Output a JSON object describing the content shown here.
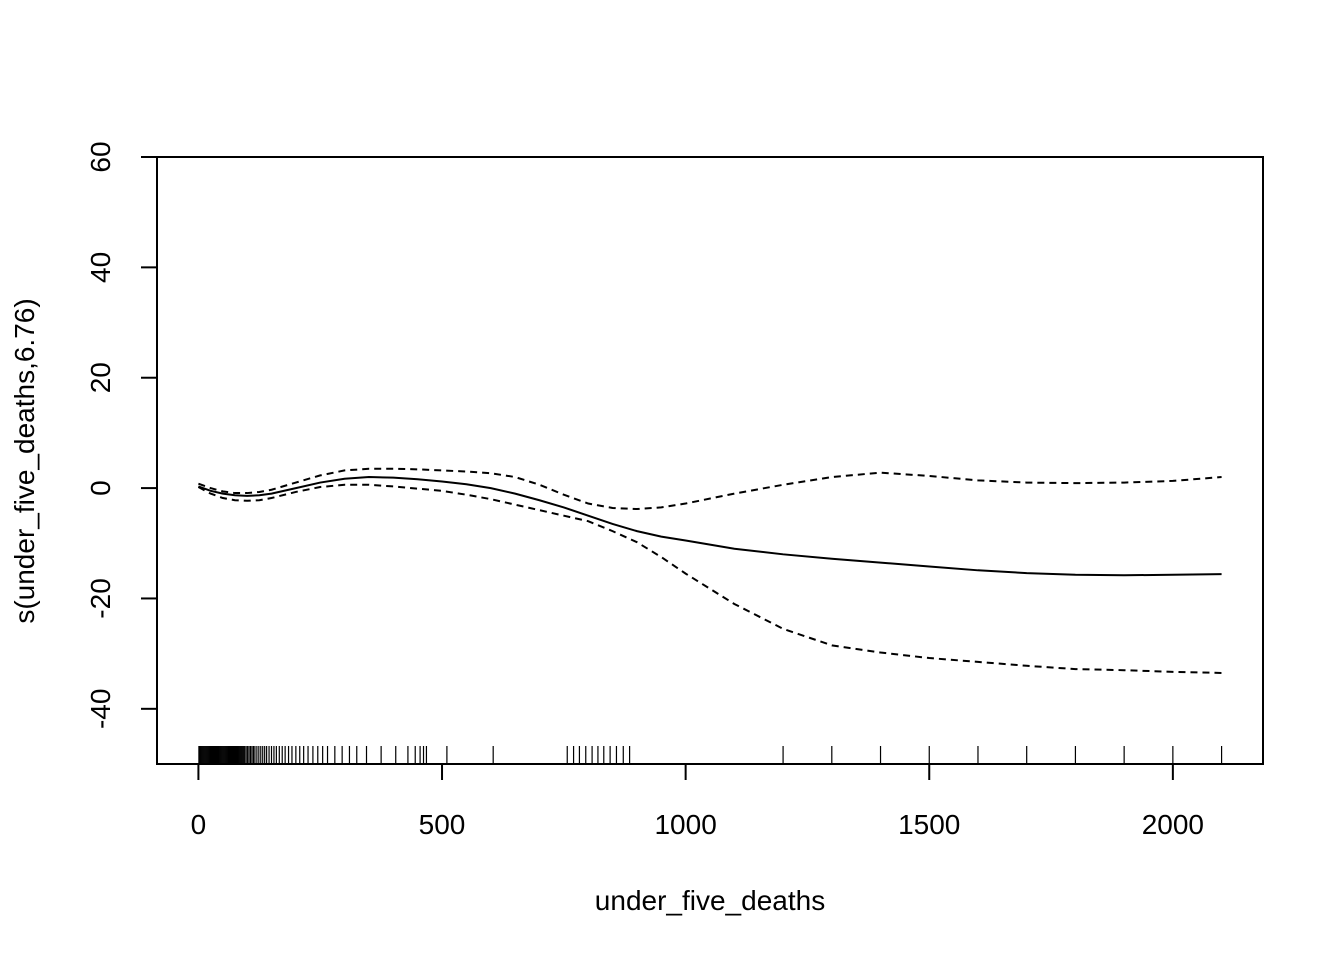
{
  "chart_data": {
    "type": "line",
    "title": "",
    "xlabel": "under_five_deaths",
    "ylabel": "s(under_five_deaths,6.76)",
    "xlim": [
      -85,
      2185
    ],
    "ylim": [
      -50,
      60
    ],
    "xticks": [
      0,
      500,
      1000,
      1500,
      2000
    ],
    "yticks": [
      -40,
      -20,
      0,
      20,
      40,
      60
    ],
    "grid": false,
    "series": [
      {
        "role": "estimate",
        "style": "solid",
        "x": [
          0,
          25,
          50,
          75,
          100,
          125,
          150,
          200,
          250,
          300,
          350,
          400,
          450,
          500,
          550,
          600,
          650,
          700,
          750,
          800,
          850,
          900,
          950,
          1000,
          1100,
          1200,
          1300,
          1400,
          1500,
          1600,
          1700,
          1800,
          1900,
          2000,
          2100
        ],
        "y": [
          0.3,
          -0.5,
          -1.0,
          -1.3,
          -1.4,
          -1.3,
          -1.0,
          0.0,
          1.0,
          1.7,
          2.0,
          1.9,
          1.6,
          1.2,
          0.7,
          0.0,
          -1.0,
          -2.2,
          -3.5,
          -5.0,
          -6.5,
          -7.8,
          -8.8,
          -9.5,
          -11.0,
          -12.0,
          -12.8,
          -13.5,
          -14.2,
          -14.9,
          -15.4,
          -15.7,
          -15.8,
          -15.7,
          -15.6
        ]
      },
      {
        "role": "upper-bound",
        "style": "dashed",
        "x": [
          0,
          25,
          50,
          75,
          100,
          125,
          150,
          200,
          250,
          300,
          350,
          400,
          450,
          500,
          550,
          600,
          650,
          700,
          750,
          800,
          850,
          900,
          950,
          1000,
          1100,
          1200,
          1300,
          1400,
          1500,
          1600,
          1700,
          1800,
          1900,
          2000,
          2100
        ],
        "y": [
          0.8,
          0.0,
          -0.6,
          -0.9,
          -0.9,
          -0.7,
          -0.3,
          1.0,
          2.3,
          3.2,
          3.5,
          3.5,
          3.4,
          3.2,
          3.0,
          2.7,
          2.0,
          0.6,
          -1.2,
          -2.8,
          -3.6,
          -3.8,
          -3.5,
          -2.8,
          -1.0,
          0.6,
          2.0,
          2.8,
          2.2,
          1.4,
          1.0,
          0.9,
          1.0,
          1.3,
          2.0
        ]
      },
      {
        "role": "lower-bound",
        "style": "dashed",
        "x": [
          0,
          25,
          50,
          75,
          100,
          125,
          150,
          200,
          250,
          300,
          350,
          400,
          450,
          500,
          550,
          600,
          650,
          700,
          750,
          800,
          850,
          900,
          950,
          1000,
          1100,
          1200,
          1300,
          1400,
          1500,
          1600,
          1700,
          1800,
          1900,
          2000,
          2100
        ],
        "y": [
          0.2,
          -1.0,
          -1.8,
          -2.2,
          -2.3,
          -2.2,
          -1.8,
          -0.7,
          0.2,
          0.6,
          0.6,
          0.3,
          -0.1,
          -0.5,
          -1.2,
          -2.0,
          -3.0,
          -4.0,
          -5.0,
          -6.0,
          -7.8,
          -9.8,
          -12.5,
          -15.5,
          -21.0,
          -25.5,
          -28.5,
          -29.8,
          -30.8,
          -31.5,
          -32.2,
          -32.8,
          -33.0,
          -33.3,
          -33.5
        ]
      }
    ],
    "rug": [
      1,
      3,
      5,
      7,
      9,
      11,
      13,
      15,
      17,
      19,
      21,
      23,
      25,
      27,
      29,
      31,
      33,
      35,
      37,
      39,
      41,
      43,
      45,
      47,
      49,
      51,
      53,
      55,
      57,
      59,
      61,
      63,
      65,
      67,
      69,
      71,
      73,
      75,
      77,
      79,
      81,
      83,
      85,
      87,
      89,
      91,
      93,
      95,
      98,
      101,
      104,
      107,
      110,
      113,
      116,
      120,
      124,
      128,
      132,
      136,
      140,
      145,
      150,
      155,
      160,
      166,
      172,
      178,
      185,
      192,
      200,
      208,
      216,
      225,
      235,
      245,
      255,
      265,
      280,
      295,
      310,
      325,
      345,
      375,
      405,
      430,
      445,
      455,
      462,
      468,
      510,
      605,
      757,
      770,
      782,
      795,
      808,
      820,
      832,
      845,
      858,
      872,
      885,
      1200,
      1300,
      1400,
      1500,
      1600,
      1700,
      1800,
      1900,
      2000,
      2100
    ]
  }
}
